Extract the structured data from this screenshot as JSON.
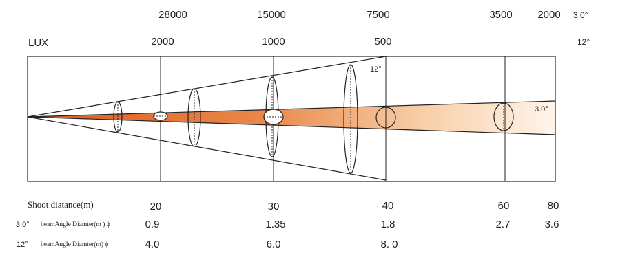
{
  "lux_label": "LUX",
  "lux_row_3deg": {
    "angle": "3.0°",
    "values": [
      "28000",
      "15000",
      "7500",
      "3500",
      "2000"
    ]
  },
  "lux_row_12deg": {
    "angle": "12°",
    "values": [
      "2000",
      "1000",
      "500"
    ]
  },
  "beam_labels": {
    "wide": "12°",
    "narrow": "3.0°"
  },
  "colors": {
    "beam_core": "#e0591c",
    "beam_fade": "#fff4ea",
    "lines": "#222222"
  },
  "table": {
    "distance_label": "Shoot diatance(m)",
    "distances": [
      "20",
      "30",
      "40",
      "60",
      "80"
    ],
    "row_3deg": {
      "angle": "3.0°",
      "label": "beamAngle Diamter(m ) ϕ",
      "values": [
        "0.9",
        "1.35",
        "1.8",
        "2.7",
        "3.6"
      ]
    },
    "row_12deg": {
      "angle": "12°",
      "label": "beamAngle Diamter(m) ϕ",
      "values": [
        "4.0",
        "6.0",
        "8. 0"
      ]
    }
  }
}
